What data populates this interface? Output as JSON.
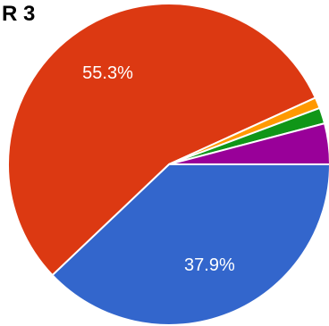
{
  "chart_data": {
    "type": "pie",
    "title": "R 3",
    "slices": [
      {
        "value": 37.9,
        "label": "37.9%",
        "color": "#3366cc"
      },
      {
        "value": 55.3,
        "label": "55.3%",
        "color": "#dc3912"
      },
      {
        "value": 1.1,
        "label": "",
        "color": "#ff9900"
      },
      {
        "value": 1.6,
        "label": "",
        "color": "#109618"
      },
      {
        "value": 4.1,
        "label": "",
        "color": "#990099"
      }
    ]
  }
}
